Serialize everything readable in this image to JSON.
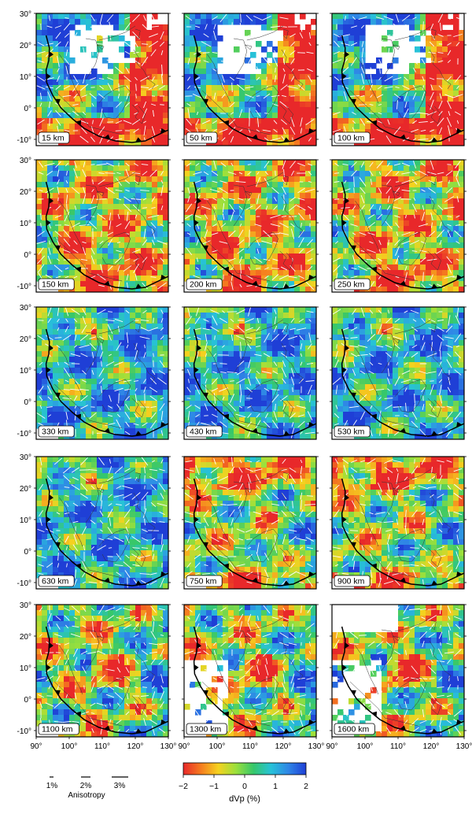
{
  "figure": {
    "map_extent": {
      "lon": [
        90,
        130
      ],
      "lat": [
        -12,
        30
      ]
    },
    "lat_ticks": [
      "30°",
      "20°",
      "10°",
      "0°",
      "-10°"
    ],
    "lon_ticks": [
      "90°",
      "100°",
      "110°",
      "120°",
      "130°"
    ],
    "panels": [
      {
        "depth_label": "15 km",
        "regime": "low"
      },
      {
        "depth_label": "50 km",
        "regime": "low"
      },
      {
        "depth_label": "100 km",
        "regime": "low"
      },
      {
        "depth_label": "150 km",
        "regime": "mixed"
      },
      {
        "depth_label": "200 km",
        "regime": "mixed"
      },
      {
        "depth_label": "250 km",
        "regime": "mixed"
      },
      {
        "depth_label": "330 km",
        "regime": "fast"
      },
      {
        "depth_label": "430 km",
        "regime": "fast"
      },
      {
        "depth_label": "530 km",
        "regime": "fast"
      },
      {
        "depth_label": "630 km",
        "regime": "fast"
      },
      {
        "depth_label": "750 km",
        "regime": "warm"
      },
      {
        "depth_label": "900 km",
        "regime": "warm"
      },
      {
        "depth_label": "1100 km",
        "regime": "deep"
      },
      {
        "depth_label": "1300 km",
        "regime": "deep"
      },
      {
        "depth_label": "1600 km",
        "regime": "deep"
      }
    ],
    "anisotropy_legend": {
      "title": "Anisotropy",
      "items": [
        "1%",
        "2%",
        "3%"
      ]
    },
    "colorbar": {
      "label": "dVp (%)",
      "ticks": [
        "−2",
        "−1",
        "0",
        "1",
        "2"
      ],
      "range": [
        -2,
        2
      ],
      "colors": [
        "#e8282a",
        "#f57c1f",
        "#f5d21f",
        "#9be03c",
        "#36c76a",
        "#27c2d8",
        "#2f86e6",
        "#1f3fd6"
      ]
    }
  }
}
